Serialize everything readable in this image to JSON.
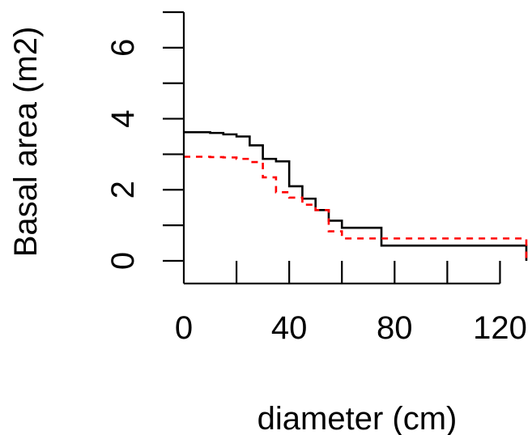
{
  "chart_data": {
    "type": "line",
    "xlabel": "diameter (cm)",
    "ylabel": "Basal area (m2)",
    "xlim": [
      0,
      130
    ],
    "ylim": [
      0,
      7
    ],
    "x_ticks": [
      0,
      20,
      40,
      60,
      80,
      100,
      120
    ],
    "x_tick_labels": [
      "0",
      "40",
      "80",
      "120"
    ],
    "x_tick_label_values": [
      0,
      40,
      80,
      120
    ],
    "y_ticks": [
      0,
      1,
      2,
      3,
      4,
      5,
      6,
      7
    ],
    "y_tick_labels": [
      "0",
      "2",
      "4",
      "6"
    ],
    "y_tick_label_values": [
      0,
      2,
      4,
      6
    ],
    "grid": false,
    "series": [
      {
        "color": "#000000",
        "line_style": "solid",
        "step": true,
        "x": [
          0,
          10,
          15,
          20,
          25,
          30,
          35,
          40,
          45,
          50,
          55,
          60,
          75,
          130
        ],
        "values": [
          3.62,
          3.6,
          3.56,
          3.5,
          3.25,
          2.87,
          2.8,
          2.1,
          1.75,
          1.43,
          1.13,
          0.93,
          0.43,
          0.0
        ]
      },
      {
        "color": "#ff0000",
        "line_style": "dashed",
        "step": true,
        "x": [
          0,
          10,
          15,
          20,
          25,
          30,
          35,
          40,
          45,
          50,
          55,
          60,
          130
        ],
        "values": [
          2.93,
          2.92,
          2.91,
          2.87,
          2.78,
          2.35,
          1.93,
          1.78,
          1.58,
          1.43,
          0.83,
          0.63,
          0.0
        ]
      }
    ]
  }
}
